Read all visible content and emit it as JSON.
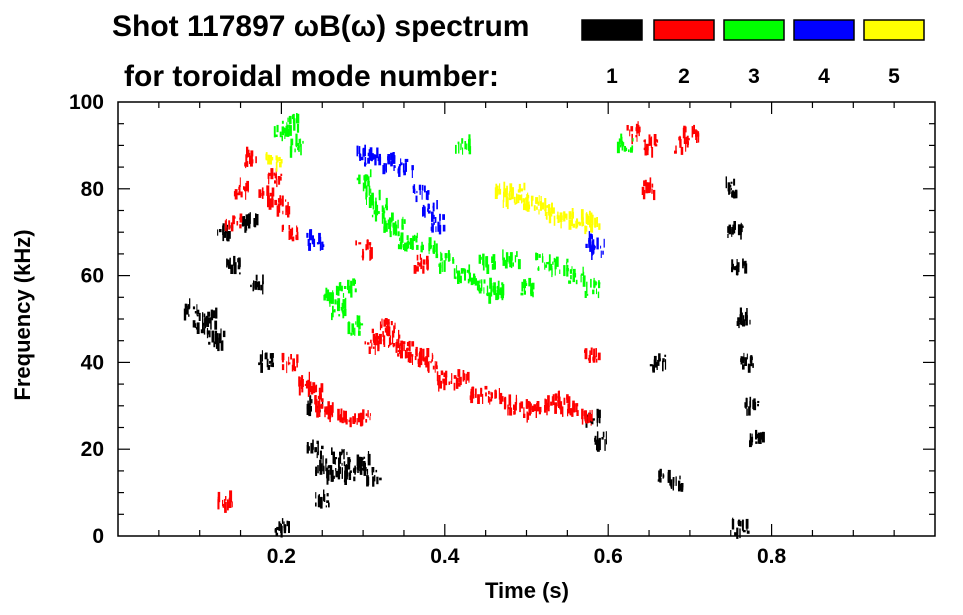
{
  "chart_data": {
    "type": "scatter",
    "title": "Shot 117897 ωB(ω) spectrum",
    "subtitle": "for toroidal mode number:",
    "xlabel": "Time (s)",
    "ylabel": "Frequency (kHz)",
    "xlim": [
      0.0,
      1.0
    ],
    "ylim": [
      0,
      100
    ],
    "x_ticks": [
      0.2,
      0.4,
      0.6,
      0.8
    ],
    "y_ticks": [
      0,
      20,
      40,
      60,
      80,
      100
    ],
    "legend": [
      {
        "label": "1",
        "color": "#000000"
      },
      {
        "label": "2",
        "color": "#ff0000"
      },
      {
        "label": "3",
        "color": "#00ff00"
      },
      {
        "label": "4",
        "color": "#0000ff"
      },
      {
        "label": "5",
        "color": "#ffff00"
      }
    ],
    "legend_position": "top-right",
    "series": [
      {
        "name": "n=1",
        "mode": 1,
        "color": "#000000",
        "points": [
          [
            0.09,
            52
          ],
          [
            0.1,
            48
          ],
          [
            0.11,
            50
          ],
          [
            0.12,
            45
          ],
          [
            0.13,
            70
          ],
          [
            0.14,
            62
          ],
          [
            0.16,
            72
          ],
          [
            0.17,
            58
          ],
          [
            0.18,
            40
          ],
          [
            0.24,
            20
          ],
          [
            0.25,
            16
          ],
          [
            0.26,
            14
          ],
          [
            0.27,
            18
          ],
          [
            0.28,
            14
          ],
          [
            0.29,
            16
          ],
          [
            0.3,
            17
          ],
          [
            0.31,
            14
          ],
          [
            0.24,
            30
          ],
          [
            0.25,
            8
          ],
          [
            0.2,
            2
          ],
          [
            0.58,
            27
          ],
          [
            0.59,
            22
          ],
          [
            0.66,
            40
          ],
          [
            0.67,
            13
          ],
          [
            0.68,
            12
          ],
          [
            0.75,
            80
          ],
          [
            0.755,
            70
          ],
          [
            0.76,
            62
          ],
          [
            0.765,
            50
          ],
          [
            0.77,
            40
          ],
          [
            0.775,
            30
          ],
          [
            0.78,
            22
          ],
          [
            0.76,
            2
          ]
        ]
      },
      {
        "name": "n=2",
        "mode": 2,
        "color": "#ff0000",
        "points": [
          [
            0.14,
            72
          ],
          [
            0.15,
            80
          ],
          [
            0.16,
            87
          ],
          [
            0.18,
            78
          ],
          [
            0.19,
            82
          ],
          [
            0.2,
            76
          ],
          [
            0.21,
            70
          ],
          [
            0.13,
            8
          ],
          [
            0.21,
            40
          ],
          [
            0.23,
            35
          ],
          [
            0.24,
            33
          ],
          [
            0.25,
            30
          ],
          [
            0.26,
            28
          ],
          [
            0.28,
            27
          ],
          [
            0.3,
            27
          ],
          [
            0.31,
            44
          ],
          [
            0.32,
            46
          ],
          [
            0.33,
            48
          ],
          [
            0.34,
            45
          ],
          [
            0.35,
            43
          ],
          [
            0.36,
            42
          ],
          [
            0.37,
            41
          ],
          [
            0.38,
            40
          ],
          [
            0.4,
            36
          ],
          [
            0.42,
            36
          ],
          [
            0.44,
            33
          ],
          [
            0.46,
            32
          ],
          [
            0.48,
            30
          ],
          [
            0.5,
            29
          ],
          [
            0.52,
            30
          ],
          [
            0.54,
            31
          ],
          [
            0.55,
            30
          ],
          [
            0.57,
            27
          ],
          [
            0.58,
            42
          ],
          [
            0.37,
            63
          ],
          [
            0.63,
            93
          ],
          [
            0.65,
            90
          ],
          [
            0.69,
            90
          ],
          [
            0.7,
            93
          ],
          [
            0.65,
            80
          ],
          [
            0.3,
            66
          ]
        ]
      },
      {
        "name": "n=3",
        "mode": 3,
        "color": "#00ff00",
        "points": [
          [
            0.2,
            93
          ],
          [
            0.21,
            95
          ],
          [
            0.22,
            90
          ],
          [
            0.26,
            55
          ],
          [
            0.27,
            52
          ],
          [
            0.28,
            57
          ],
          [
            0.29,
            48
          ],
          [
            0.3,
            82
          ],
          [
            0.31,
            78
          ],
          [
            0.32,
            75
          ],
          [
            0.33,
            72
          ],
          [
            0.34,
            71
          ],
          [
            0.35,
            68
          ],
          [
            0.36,
            68
          ],
          [
            0.38,
            66
          ],
          [
            0.4,
            63
          ],
          [
            0.42,
            60
          ],
          [
            0.44,
            58
          ],
          [
            0.46,
            56
          ],
          [
            0.45,
            63
          ],
          [
            0.48,
            64
          ],
          [
            0.5,
            57
          ],
          [
            0.52,
            63
          ],
          [
            0.54,
            62
          ],
          [
            0.56,
            60
          ],
          [
            0.58,
            57
          ],
          [
            0.46,
            57
          ],
          [
            0.42,
            90
          ],
          [
            0.62,
            90
          ]
        ]
      },
      {
        "name": "n=4",
        "mode": 4,
        "color": "#0000ff",
        "points": [
          [
            0.3,
            88
          ],
          [
            0.31,
            87
          ],
          [
            0.33,
            86
          ],
          [
            0.35,
            85
          ],
          [
            0.37,
            79
          ],
          [
            0.38,
            75
          ],
          [
            0.39,
            72
          ],
          [
            0.24,
            68
          ],
          [
            0.58,
            68
          ],
          [
            0.585,
            66
          ]
        ]
      },
      {
        "name": "n=5",
        "mode": 5,
        "color": "#ffff00",
        "points": [
          [
            0.19,
            86
          ],
          [
            0.47,
            80
          ],
          [
            0.48,
            78
          ],
          [
            0.49,
            79
          ],
          [
            0.5,
            77
          ],
          [
            0.52,
            76
          ],
          [
            0.53,
            74
          ],
          [
            0.55,
            73
          ],
          [
            0.57,
            73
          ],
          [
            0.58,
            72
          ]
        ]
      }
    ]
  }
}
